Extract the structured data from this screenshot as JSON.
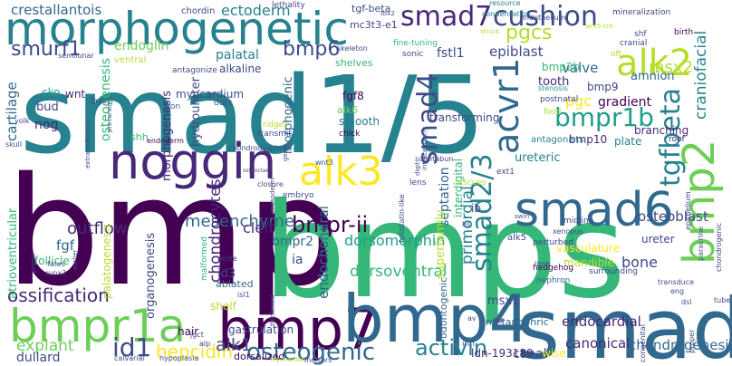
{
  "palette": {
    "viridis-purple": "#440154",
    "viridis-indigo": "#482878",
    "viridis-blue": "#3e4a89",
    "viridis-slate": "#31688e",
    "viridis-teal": "#26828e",
    "viridis-cyan": "#1f9e89",
    "viridis-green": "#35b779",
    "viridis-lime": "#6ece58",
    "viridis-yellow-green": "#b5de2b",
    "viridis-yellow": "#fde725"
  },
  "words": [
    {
      "text": "smad1/5",
      "color": "#26828e"
    },
    {
      "text": "bmp",
      "color": "#440154"
    },
    {
      "text": "bmps",
      "color": "#35b779"
    },
    {
      "text": "smad8",
      "color": "#31688e"
    },
    {
      "text": "bmp7",
      "color": "#440154"
    },
    {
      "text": "bmp4",
      "color": "#31688e"
    },
    {
      "text": "morphogenetic",
      "color": "#26828e"
    },
    {
      "text": "bmpr1a",
      "color": "#6ece58"
    },
    {
      "text": "noggin",
      "color": "#482878"
    },
    {
      "text": "smad6",
      "color": "#31688e"
    },
    {
      "text": "alk3",
      "color": "#fde725"
    },
    {
      "text": "alk2",
      "color": "#b5de2b"
    },
    {
      "text": "acvr1",
      "color": "#31688e"
    },
    {
      "text": "smad4",
      "color": "#3e4a89"
    },
    {
      "text": "bmp2",
      "color": "#6ece58"
    },
    {
      "text": "smad7",
      "color": "#482878"
    },
    {
      "text": "cushion",
      "color": "#3e4a89"
    },
    {
      "text": "bmpr1b",
      "color": "#1f9e89"
    },
    {
      "text": "bmpr-ii",
      "color": "#440154"
    },
    {
      "text": "smad2/3",
      "color": "#26828e"
    },
    {
      "text": "tgfbeta",
      "color": "#26828e"
    },
    {
      "text": "id1",
      "color": "#3e4a89"
    },
    {
      "text": "osteogenic",
      "color": "#31688e"
    },
    {
      "text": "activin",
      "color": "#26828e"
    },
    {
      "text": "hepcidin",
      "color": "#fde725"
    },
    {
      "text": "alk1",
      "color": "#3e4a89"
    },
    {
      "text": "ossification",
      "color": "#482878"
    },
    {
      "text": "outflow",
      "color": "#482878"
    },
    {
      "text": "dorsomorphin",
      "color": "#1f9e89"
    },
    {
      "text": "mesenchyme",
      "color": "#31688e"
    },
    {
      "text": "smurf1",
      "color": "#3e4a89"
    },
    {
      "text": "bmp6",
      "color": "#3e4a89"
    },
    {
      "text": "pgcs",
      "color": "#b5de2b"
    },
    {
      "text": "crestallantois",
      "color": "#31688e"
    },
    {
      "text": "ectoderm",
      "color": "#26828e"
    },
    {
      "text": "fgf",
      "color": "#31688e"
    },
    {
      "text": "chondrocytes",
      "color": "#482878"
    },
    {
      "text": "cleft",
      "color": "#482878"
    },
    {
      "text": "endochondral",
      "color": "#31688e"
    },
    {
      "text": "primordial",
      "color": "#26828e"
    },
    {
      "text": "osteoblast",
      "color": "#3e4a89"
    },
    {
      "text": "bone",
      "color": "#3e4a89"
    },
    {
      "text": "endocardial",
      "color": "#482878"
    },
    {
      "text": "canonical",
      "color": "#482878"
    },
    {
      "text": "chondrogenesis",
      "color": "#31688e"
    },
    {
      "text": "dorsoventral",
      "color": "#35b779"
    },
    {
      "text": "metanephric",
      "color": "#31688e"
    },
    {
      "text": "ldn-193189",
      "color": "#482878"
    },
    {
      "text": "canal",
      "color": "#3e4a89"
    },
    {
      "text": "explant",
      "color": "#6ece58"
    },
    {
      "text": "dullard",
      "color": "#3e4a89"
    },
    {
      "text": "cartilage",
      "color": "#31688e"
    },
    {
      "text": "osteogenesis",
      "color": "#35b779"
    },
    {
      "text": "craniofacial",
      "color": "#26828e"
    },
    {
      "text": "msx2",
      "color": "#b5de2b"
    },
    {
      "text": "endoglin",
      "color": "#6ece58"
    },
    {
      "text": "palatal",
      "color": "#26828e"
    },
    {
      "text": "alkaline",
      "color": "#3e4a89"
    },
    {
      "text": "septation",
      "color": "#31688e"
    },
    {
      "text": "interdigital",
      "color": "#35b779"
    },
    {
      "text": "superfamily",
      "color": "#b5de2b"
    },
    {
      "text": "epiblast",
      "color": "#3e4a89"
    },
    {
      "text": "gradient",
      "color": "#440154"
    },
    {
      "text": "pgc",
      "color": "#fde725"
    },
    {
      "text": "bmp9",
      "color": "#3e4a89"
    },
    {
      "text": "bmp10",
      "color": "#482878"
    },
    {
      "text": "ureteric",
      "color": "#26828e"
    },
    {
      "text": "vasculature",
      "color": "#fde725"
    },
    {
      "text": "fstl1",
      "color": "#3e4a89"
    },
    {
      "text": "myocardium",
      "color": "#3e4a89"
    },
    {
      "text": "morphogenesis",
      "color": "#482878"
    },
    {
      "text": "morphogenic",
      "color": "#31688e"
    },
    {
      "text": "hydroureter",
      "color": "#3e4a89"
    },
    {
      "text": "organogenesis",
      "color": "#3e4a89"
    },
    {
      "text": "valve",
      "color": "#31688e"
    },
    {
      "text": "tooth",
      "color": "#482878"
    },
    {
      "text": "bmp2b",
      "color": "#35b779"
    },
    {
      "text": "amnion",
      "color": "#31688e"
    },
    {
      "text": "branching",
      "color": "#482878"
    },
    {
      "text": "plate",
      "color": "#26828e"
    },
    {
      "text": "mandible",
      "color": "#b5de2b"
    },
    {
      "text": "ureter",
      "color": "#3e4a89"
    },
    {
      "text": "msx1",
      "color": "#3e4a89"
    },
    {
      "text": "odontogenic",
      "color": "#31688e"
    },
    {
      "text": "nog",
      "color": "#482878"
    },
    {
      "text": "fgf8",
      "color": "#440154"
    },
    {
      "text": "smooth",
      "color": "#26828e"
    },
    {
      "text": "bmpr2",
      "color": "#31688e"
    },
    {
      "text": "ia",
      "color": "#3e4a89"
    },
    {
      "text": "gastrulation",
      "color": "#3e4a89"
    },
    {
      "text": "follicle",
      "color": "#35b779"
    },
    {
      "text": "atrioventricular",
      "color": "#35b779"
    },
    {
      "text": "palatogenesis",
      "color": "#b5de2b"
    },
    {
      "text": "shelf",
      "color": "#b5de2b"
    },
    {
      "text": "wise",
      "color": "#fde725"
    },
    {
      "text": "hair",
      "color": "#440154"
    },
    {
      "text": "id3",
      "color": "#3e4a89"
    },
    {
      "text": "ablated",
      "color": "#31688e"
    },
    {
      "text": "lethality",
      "color": "#3e4a89"
    },
    {
      "text": "chordin",
      "color": "#3e4a89"
    },
    {
      "text": "tgf-beta",
      "color": "#3e4a89"
    },
    {
      "text": "mc3t3-e1",
      "color": "#3e4a89"
    },
    {
      "text": "condensation",
      "color": "#26828e"
    },
    {
      "text": "mineralization",
      "color": "#3e4a89"
    },
    {
      "text": "wnt",
      "color": "#482878"
    },
    {
      "text": "bud",
      "color": "#3e4a89"
    },
    {
      "text": "cko",
      "color": "#1f9e89"
    },
    {
      "text": "shh",
      "color": "#35b779"
    },
    {
      "text": "alk6",
      "color": "#6ece58"
    },
    {
      "text": "hedgehog",
      "color": "#440154"
    },
    {
      "text": "nephron",
      "color": "#31688e"
    },
    {
      "text": "ventral",
      "color": "#b5de2b"
    },
    {
      "text": "shelves",
      "color": "#35b779"
    },
    {
      "text": "antagonize",
      "color": "#3e4a89"
    },
    {
      "text": "iron",
      "color": "#31688e"
    },
    {
      "text": "duct",
      "color": "#3e4a89"
    },
    {
      "text": "ridges",
      "color": "#b5de2b"
    },
    {
      "text": "transmit",
      "color": "#3e4a89"
    },
    {
      "text": "chick",
      "color": "#440154"
    },
    {
      "text": "transforming",
      "color": "#3e4a89"
    },
    {
      "text": "skeleton",
      "color": "#3e4a89"
    },
    {
      "text": "fine-tuning",
      "color": "#35b779"
    },
    {
      "text": "sonic",
      "color": "#3e4a89"
    },
    {
      "text": "antagonists",
      "color": "#26828e"
    },
    {
      "text": "stenosis",
      "color": "#1f9e89"
    },
    {
      "text": "postnatal",
      "color": "#3e4a89"
    },
    {
      "text": "field",
      "color": "#b5de2b"
    },
    {
      "text": "roof",
      "color": "#482878"
    },
    {
      "text": "cranial",
      "color": "#3e4a89"
    },
    {
      "text": "shf",
      "color": "#3e4a89"
    },
    {
      "text": "birth",
      "color": "#440154"
    },
    {
      "text": "oft",
      "color": "#b5de2b"
    },
    {
      "text": "endothelium",
      "color": "#3e4a89"
    },
    {
      "text": "resource",
      "color": "#26828e"
    },
    {
      "text": "layer",
      "color": "#3e4a89"
    },
    {
      "text": "yolk",
      "color": "#3e4a89"
    },
    {
      "text": "skull",
      "color": "#3e4a89"
    },
    {
      "text": "semilunar",
      "color": "#3e4a89"
    },
    {
      "text": "endoderm",
      "color": "#440154"
    },
    {
      "text": "chondrodysplasia",
      "color": "#3e4a89"
    },
    {
      "text": "somitabun",
      "color": "#3e4a89"
    },
    {
      "text": "lens",
      "color": "#3e4a89"
    },
    {
      "text": "ext1",
      "color": "#3e4a89"
    },
    {
      "text": "wnt3",
      "color": "#3e4a89"
    },
    {
      "text": "rescues",
      "color": "#b5de2b"
    },
    {
      "text": "midline",
      "color": "#3e4a89"
    },
    {
      "text": "alk5",
      "color": "#3e4a89"
    },
    {
      "text": "embryo",
      "color": "#3e4a89"
    },
    {
      "text": "niche",
      "color": "#3e4a89"
    },
    {
      "text": "closure",
      "color": "#3e4a89"
    },
    {
      "text": "osteoclast",
      "color": "#3e4a89"
    },
    {
      "text": "follistatin-like",
      "color": "#3e4a89"
    },
    {
      "text": "xenopus",
      "color": "#3e4a89"
    },
    {
      "text": "perturbed",
      "color": "#3e4a89"
    },
    {
      "text": "limb",
      "color": "#3e4a89"
    },
    {
      "text": "surrounding",
      "color": "#3e4a89"
    },
    {
      "text": "paracrine",
      "color": "#3e4a89"
    },
    {
      "text": "tube",
      "color": "#3e4a89"
    },
    {
      "text": "chondrogenic",
      "color": "#3e4a89"
    },
    {
      "text": "epithelium",
      "color": "#3e4a89"
    },
    {
      "text": "fates",
      "color": "#3e4a89"
    },
    {
      "text": "runx2",
      "color": "#3e4a89"
    },
    {
      "text": "malformed",
      "color": "#35b779"
    },
    {
      "text": "isl1",
      "color": "#3e4a89"
    },
    {
      "text": "jgct",
      "color": "#3e4a89"
    },
    {
      "text": "alp",
      "color": "#3e4a89"
    },
    {
      "text": "hypoplasia",
      "color": "#3e4a89"
    },
    {
      "text": "calvarial",
      "color": "#3e4a89"
    },
    {
      "text": "dorsalized",
      "color": "#440154"
    },
    {
      "text": "myocardial",
      "color": "#b5de2b"
    },
    {
      "text": "incisors",
      "color": "#3e4a89"
    },
    {
      "text": "ihh",
      "color": "#3e4a89"
    },
    {
      "text": "bre",
      "color": "#3e4a89"
    },
    {
      "text": "av",
      "color": "#3e4a89"
    },
    {
      "text": "transduce",
      "color": "#3e4a89"
    },
    {
      "text": "eng",
      "color": "#3e4a89"
    },
    {
      "text": "dsl",
      "color": "#3e4a89"
    },
    {
      "text": "proper",
      "color": "#3e4a89"
    },
    {
      "text": "congenital",
      "color": "#3e4a89"
    },
    {
      "text": "tbx2",
      "color": "#3e4a89"
    },
    {
      "text": "wnt5-cre",
      "color": "#b5de2b"
    },
    {
      "text": "bmprii",
      "color": "#3e4a89"
    },
    {
      "text": "earlier",
      "color": "#3e4a89"
    },
    {
      "text": "extraembryonic",
      "color": "#3e4a89"
    },
    {
      "text": "precursor",
      "color": "#3e4a89"
    },
    {
      "text": "ib",
      "color": "#3e4a89"
    },
    {
      "text": "hs",
      "color": "#3e4a89"
    },
    {
      "text": "digit",
      "color": "#3e4a89"
    },
    {
      "text": "intracellularly",
      "color": "#3e4a89"
    },
    {
      "text": "swirl",
      "color": "#3e4a89"
    },
    {
      "text": "germ",
      "color": "#3e4a89"
    },
    {
      "text": "mesoderm",
      "color": "#3e4a89"
    },
    {
      "text": "thickened",
      "color": "#3e4a89"
    },
    {
      "text": "struck",
      "color": "#b5de2b"
    }
  ]
}
